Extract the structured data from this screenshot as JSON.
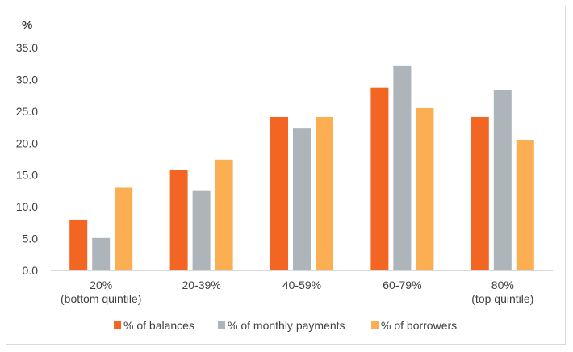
{
  "chart_data": {
    "type": "bar",
    "ylabel": "%",
    "ylim": [
      0,
      35
    ],
    "yticks": [
      "0.0",
      "5.0",
      "10.0",
      "15.0",
      "20.0",
      "25.0",
      "30.0",
      "35.0"
    ],
    "categories": [
      [
        "20%",
        "(bottom quintile)"
      ],
      [
        "20-39%"
      ],
      [
        "40-59%"
      ],
      [
        "60-79%"
      ],
      [
        "80%",
        "(top quintile)"
      ]
    ],
    "series": [
      {
        "name": "% of balances",
        "color": "#f26522",
        "values": [
          8.0,
          15.8,
          24.1,
          28.7,
          24.1
        ]
      },
      {
        "name": "% of monthly payments",
        "color": "#adb5bb",
        "values": [
          5.1,
          12.6,
          22.3,
          32.1,
          28.3
        ]
      },
      {
        "name": "% of borrowers",
        "color": "#fbae52",
        "values": [
          13.0,
          17.4,
          24.1,
          25.5,
          20.5
        ]
      }
    ],
    "grid": false,
    "legend": "bottom"
  }
}
